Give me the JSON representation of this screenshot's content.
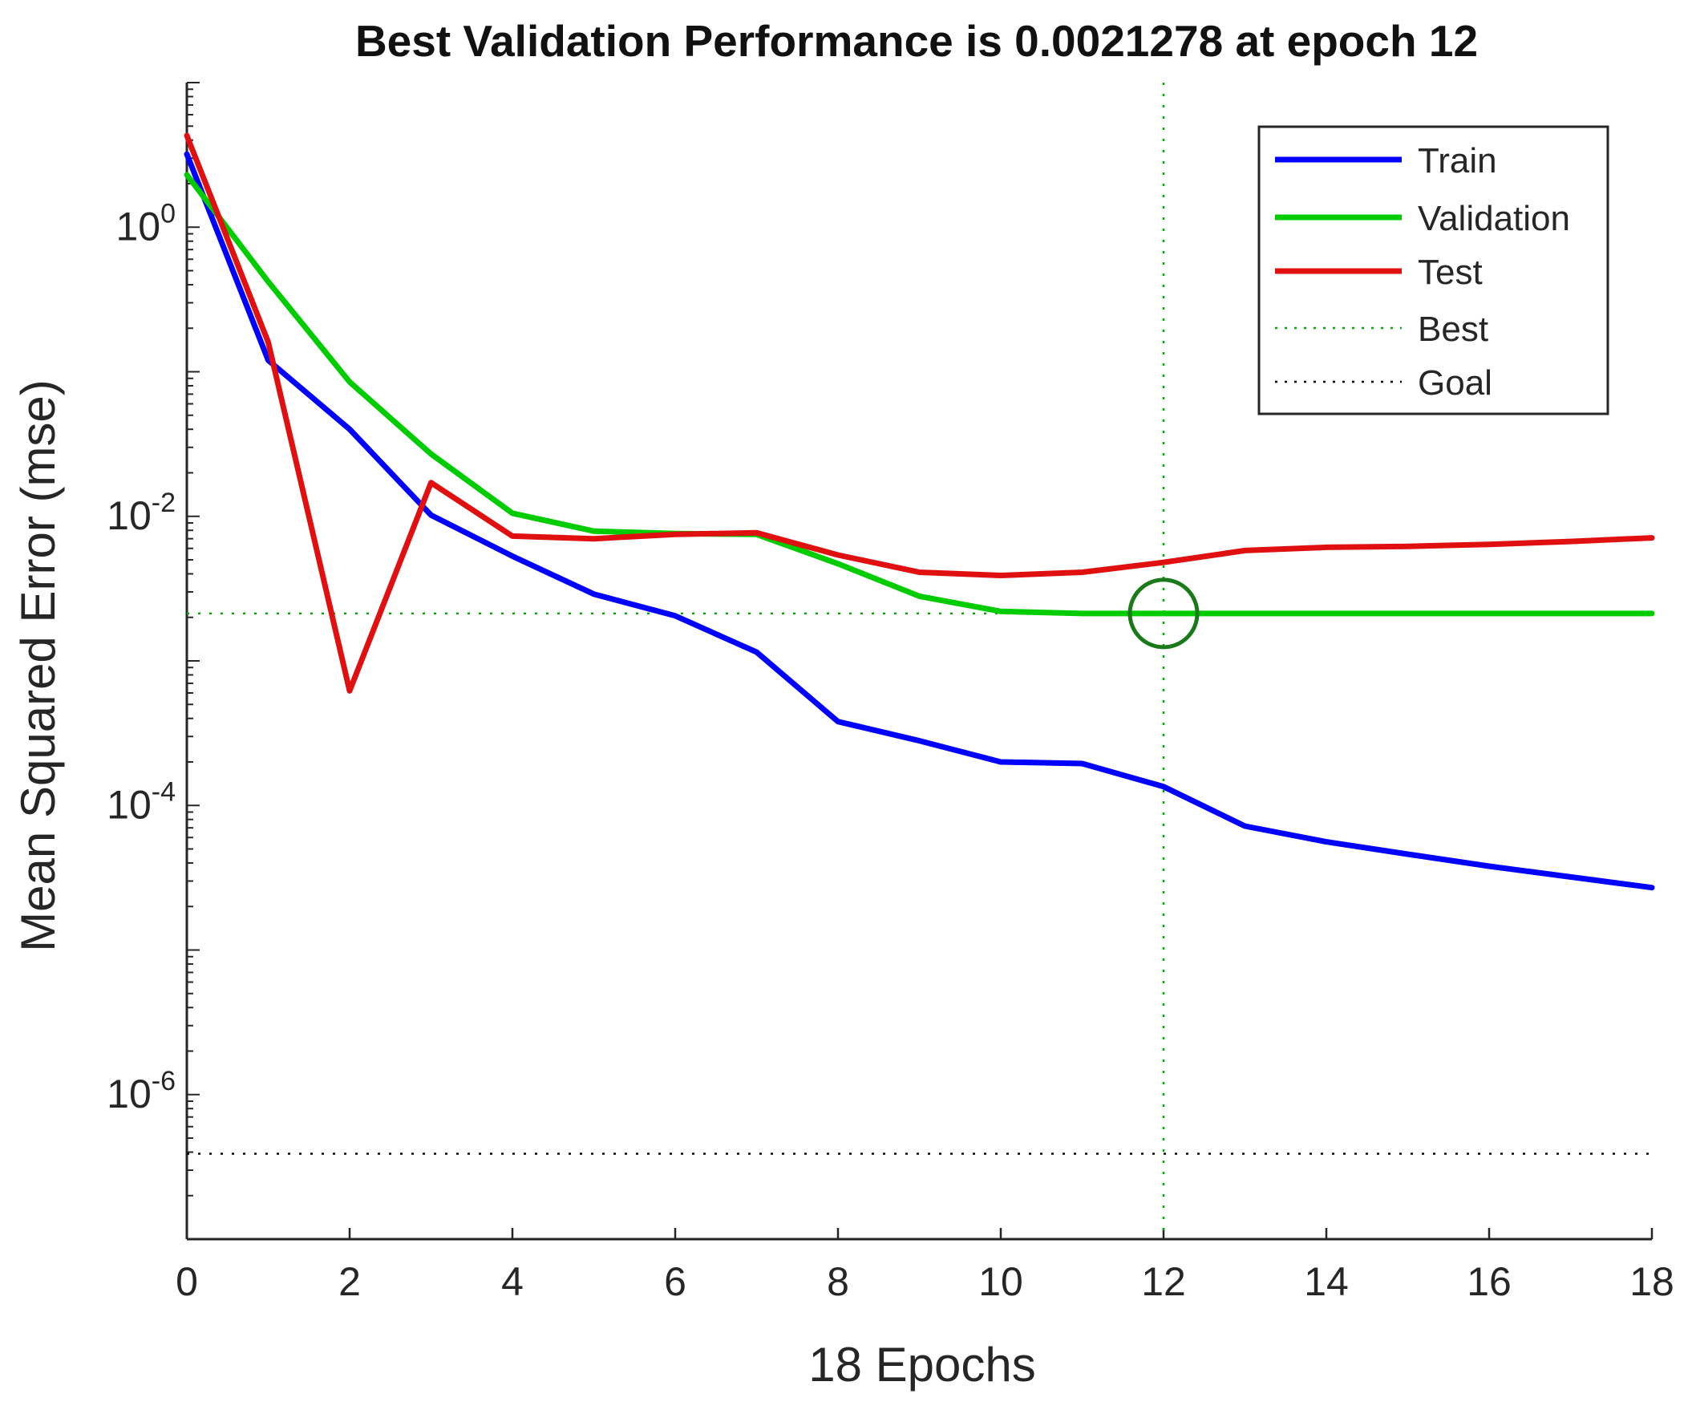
{
  "chart_data": {
    "type": "line",
    "title": "Best Validation Performance is 0.0021278 at epoch 12",
    "xlabel": "18 Epochs",
    "ylabel": "Mean Squared Error  (mse)",
    "xlim": [
      0,
      18
    ],
    "ylim_log10": [
      -7,
      1
    ],
    "yscale": "log",
    "xticks": [
      0,
      2,
      4,
      6,
      8,
      10,
      12,
      14,
      16,
      18
    ],
    "yticks": [
      {
        "base": "10",
        "exponent": "0",
        "log10": 0
      },
      {
        "base": "10",
        "exponent": "-2",
        "log10": -2
      },
      {
        "base": "10",
        "exponent": "-4",
        "log10": -4
      },
      {
        "base": "10",
        "exponent": "-6",
        "log10": -6
      }
    ],
    "x": [
      0,
      1,
      2,
      3,
      4,
      5,
      6,
      7,
      8,
      9,
      10,
      11,
      12,
      13,
      14,
      15,
      16,
      17,
      18
    ],
    "series": [
      {
        "name": "Train",
        "color": "#0000ff",
        "values": [
          3.2,
          0.12,
          0.04,
          0.0102,
          0.0053,
          0.0029,
          0.00205,
          0.00115,
          0.00038,
          0.00028,
          0.0002,
          0.000195,
          0.000135,
          7.2e-05,
          5.6e-05,
          4.6e-05,
          3.8e-05,
          3.2e-05,
          2.7e-05
        ]
      },
      {
        "name": "Validation",
        "color": "#00cc00",
        "values": [
          2.3,
          0.42,
          0.085,
          0.027,
          0.0105,
          0.0079,
          0.0076,
          0.0075,
          0.0047,
          0.0028,
          0.0022,
          0.0021278,
          0.0021278,
          0.0021278,
          0.0021278,
          0.0021278,
          0.0021278,
          0.0021278,
          0.0021278
        ]
      },
      {
        "name": "Test",
        "color": "#e01010",
        "values": [
          4.3,
          0.16,
          0.00062,
          0.0171,
          0.0073,
          0.007,
          0.0075,
          0.0077,
          0.0054,
          0.0041,
          0.0039,
          0.0041,
          0.0048,
          0.0058,
          0.0061,
          0.0062,
          0.0064,
          0.0067,
          0.0071
        ]
      }
    ],
    "best": {
      "name": "Best",
      "epoch": 12,
      "value": 0.0021278,
      "color": "#00aa00"
    },
    "goal": {
      "name": "Goal",
      "value": 3.9e-07,
      "color": "#000000"
    },
    "legend": {
      "placement": "top-right",
      "entries": [
        "Train",
        "Validation",
        "Test",
        "Best",
        "Goal"
      ]
    },
    "grid": false
  }
}
